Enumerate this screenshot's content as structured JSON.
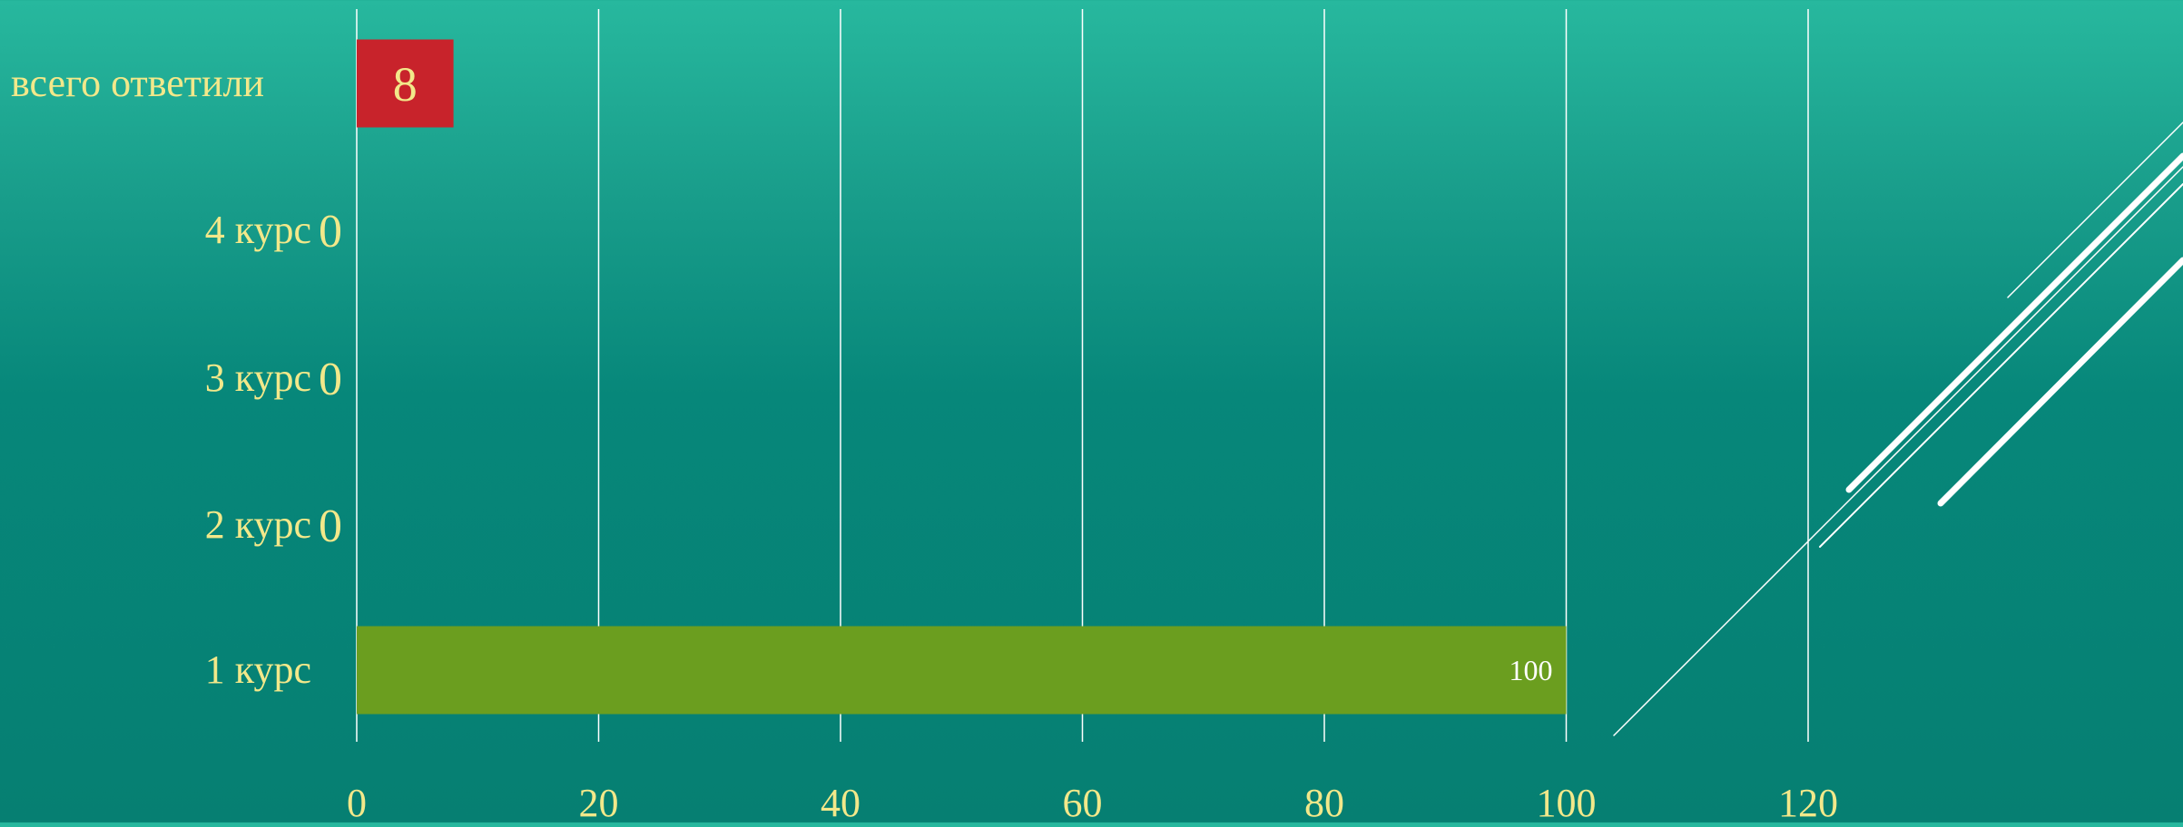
{
  "chart_data": {
    "type": "bar",
    "orientation": "horizontal",
    "categories": [
      "всего ответили",
      "4 курс",
      "3 курс",
      "2 курс",
      "1 курс"
    ],
    "values": [
      8,
      0,
      0,
      0,
      100
    ],
    "value_labels": [
      "8",
      "0",
      "0",
      "0",
      "100"
    ],
    "bar_colors": [
      "#c8232b",
      "#6b9e1f",
      "#6b9e1f",
      "#6b9e1f",
      "#6b9e1f"
    ],
    "xlim": [
      0,
      120
    ],
    "x_ticks": [
      0,
      20,
      40,
      60,
      80,
      100,
      120
    ],
    "x_tick_labels": [
      "0",
      "20",
      "40",
      "60",
      "80",
      "100",
      "120"
    ],
    "title": "",
    "xlabel": "",
    "ylabel": "",
    "grid": "vertical",
    "legend": "none"
  },
  "colors": {
    "text": "#f2e88a",
    "grid": "#ffffff",
    "bar_value_text_light": "#ffffff"
  }
}
